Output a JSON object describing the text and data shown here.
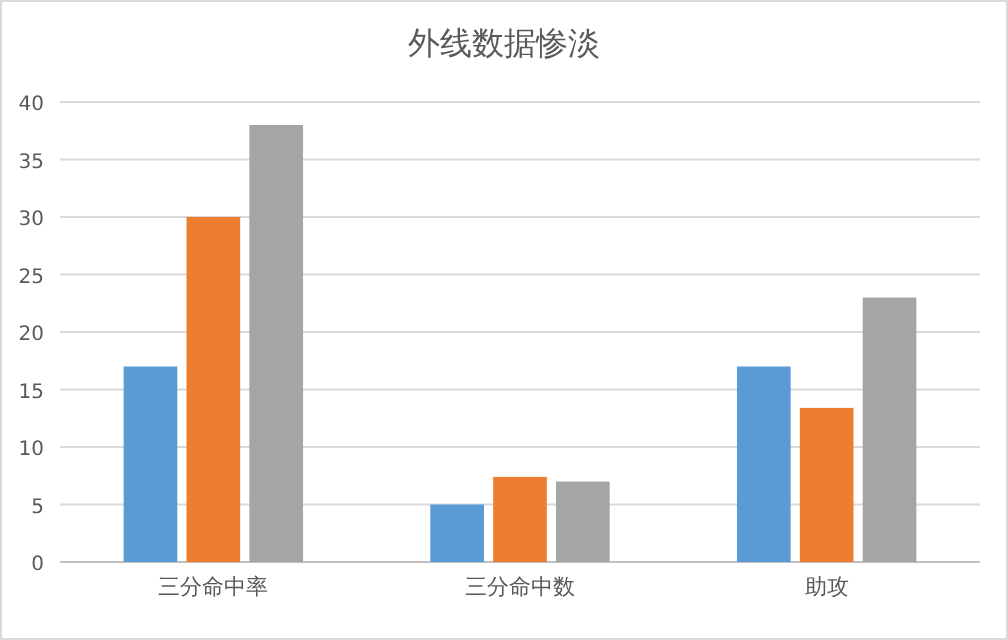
{
  "chart_data": {
    "type": "bar",
    "title": "外线数据惨淡",
    "categories": [
      "三分命中率",
      "三分命中数",
      "助攻"
    ],
    "series": [
      {
        "color": "#5b9bd5",
        "values": [
          17,
          5,
          17
        ]
      },
      {
        "color": "#ed7d31",
        "values": [
          30,
          7.4,
          13.4
        ]
      },
      {
        "color": "#a5a5a5",
        "values": [
          38,
          7,
          23
        ]
      }
    ],
    "ylim": [
      0,
      40
    ],
    "yticks": [
      0,
      5,
      10,
      15,
      20,
      25,
      30,
      35,
      40
    ],
    "grid": "y"
  }
}
